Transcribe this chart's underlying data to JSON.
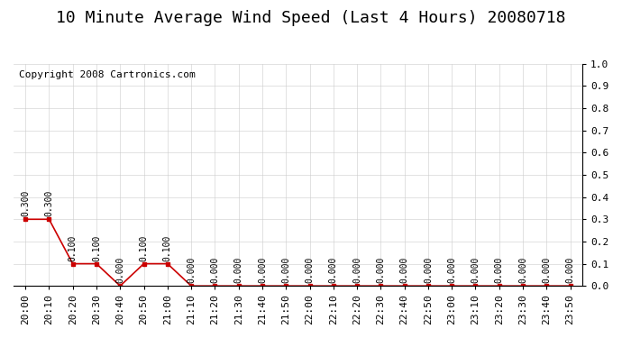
{
  "title": "10 Minute Average Wind Speed (Last 4 Hours) 20080718",
  "copyright_text": "Copyright 2008 Cartronics.com",
  "background_color": "#ffffff",
  "plot_bg_color": "#ffffff",
  "grid_color": "#cccccc",
  "line_color": "#cc0000",
  "marker_color": "#cc0000",
  "text_color": "#000000",
  "x_labels": [
    "20:00",
    "20:10",
    "20:20",
    "20:30",
    "20:40",
    "20:50",
    "21:00",
    "21:10",
    "21:20",
    "21:30",
    "21:40",
    "21:50",
    "22:00",
    "22:10",
    "22:20",
    "22:30",
    "22:40",
    "22:50",
    "23:00",
    "23:10",
    "23:20",
    "23:30",
    "23:40",
    "23:50"
  ],
  "y_values": [
    0.3,
    0.3,
    0.1,
    0.1,
    0.0,
    0.1,
    0.1,
    0.0,
    0.0,
    0.0,
    0.0,
    0.0,
    0.0,
    0.0,
    0.0,
    0.0,
    0.0,
    0.0,
    0.0,
    0.0,
    0.0,
    0.0,
    0.0,
    0.0
  ],
  "ylim": [
    0.0,
    1.0
  ],
  "y_ticks": [
    0.0,
    0.1,
    0.2,
    0.3,
    0.4,
    0.5,
    0.6,
    0.7,
    0.8,
    0.9,
    1.0
  ],
  "title_fontsize": 13,
  "label_fontsize": 7,
  "tick_fontsize": 8,
  "copyright_fontsize": 8,
  "value_label_fontsize": 7
}
